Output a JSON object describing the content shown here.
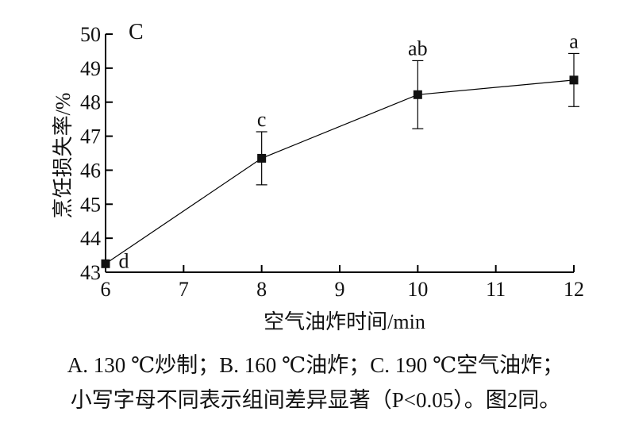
{
  "chart_data": {
    "type": "line",
    "panel_label": "C",
    "xlabel": "空气油炸时间/min",
    "ylabel": "烹饪损失率/%",
    "x": [
      6,
      8,
      10,
      12
    ],
    "xticks": [
      "6",
      "7",
      "8",
      "9",
      "10",
      "11",
      "12"
    ],
    "xlim": [
      6,
      12
    ],
    "yticks": [
      "43",
      "44",
      "45",
      "46",
      "47",
      "48",
      "49",
      "50"
    ],
    "ylim": [
      43,
      50
    ],
    "series": [
      {
        "values": [
          43.25,
          46.35,
          48.22,
          48.65
        ],
        "errors": [
          0.05,
          0.78,
          1.0,
          0.78
        ],
        "significance": [
          "d",
          "c",
          "ab",
          "a"
        ],
        "color": "#000000",
        "marker": "square"
      }
    ],
    "grid": false,
    "legend": "none"
  },
  "caption": {
    "line1": "A. 130 ℃炒制；B. 160 ℃油炸；C. 190 ℃空气油炸；",
    "line2": "小写字母不同表示组间差异显著（P<0.05）。图2同。"
  }
}
